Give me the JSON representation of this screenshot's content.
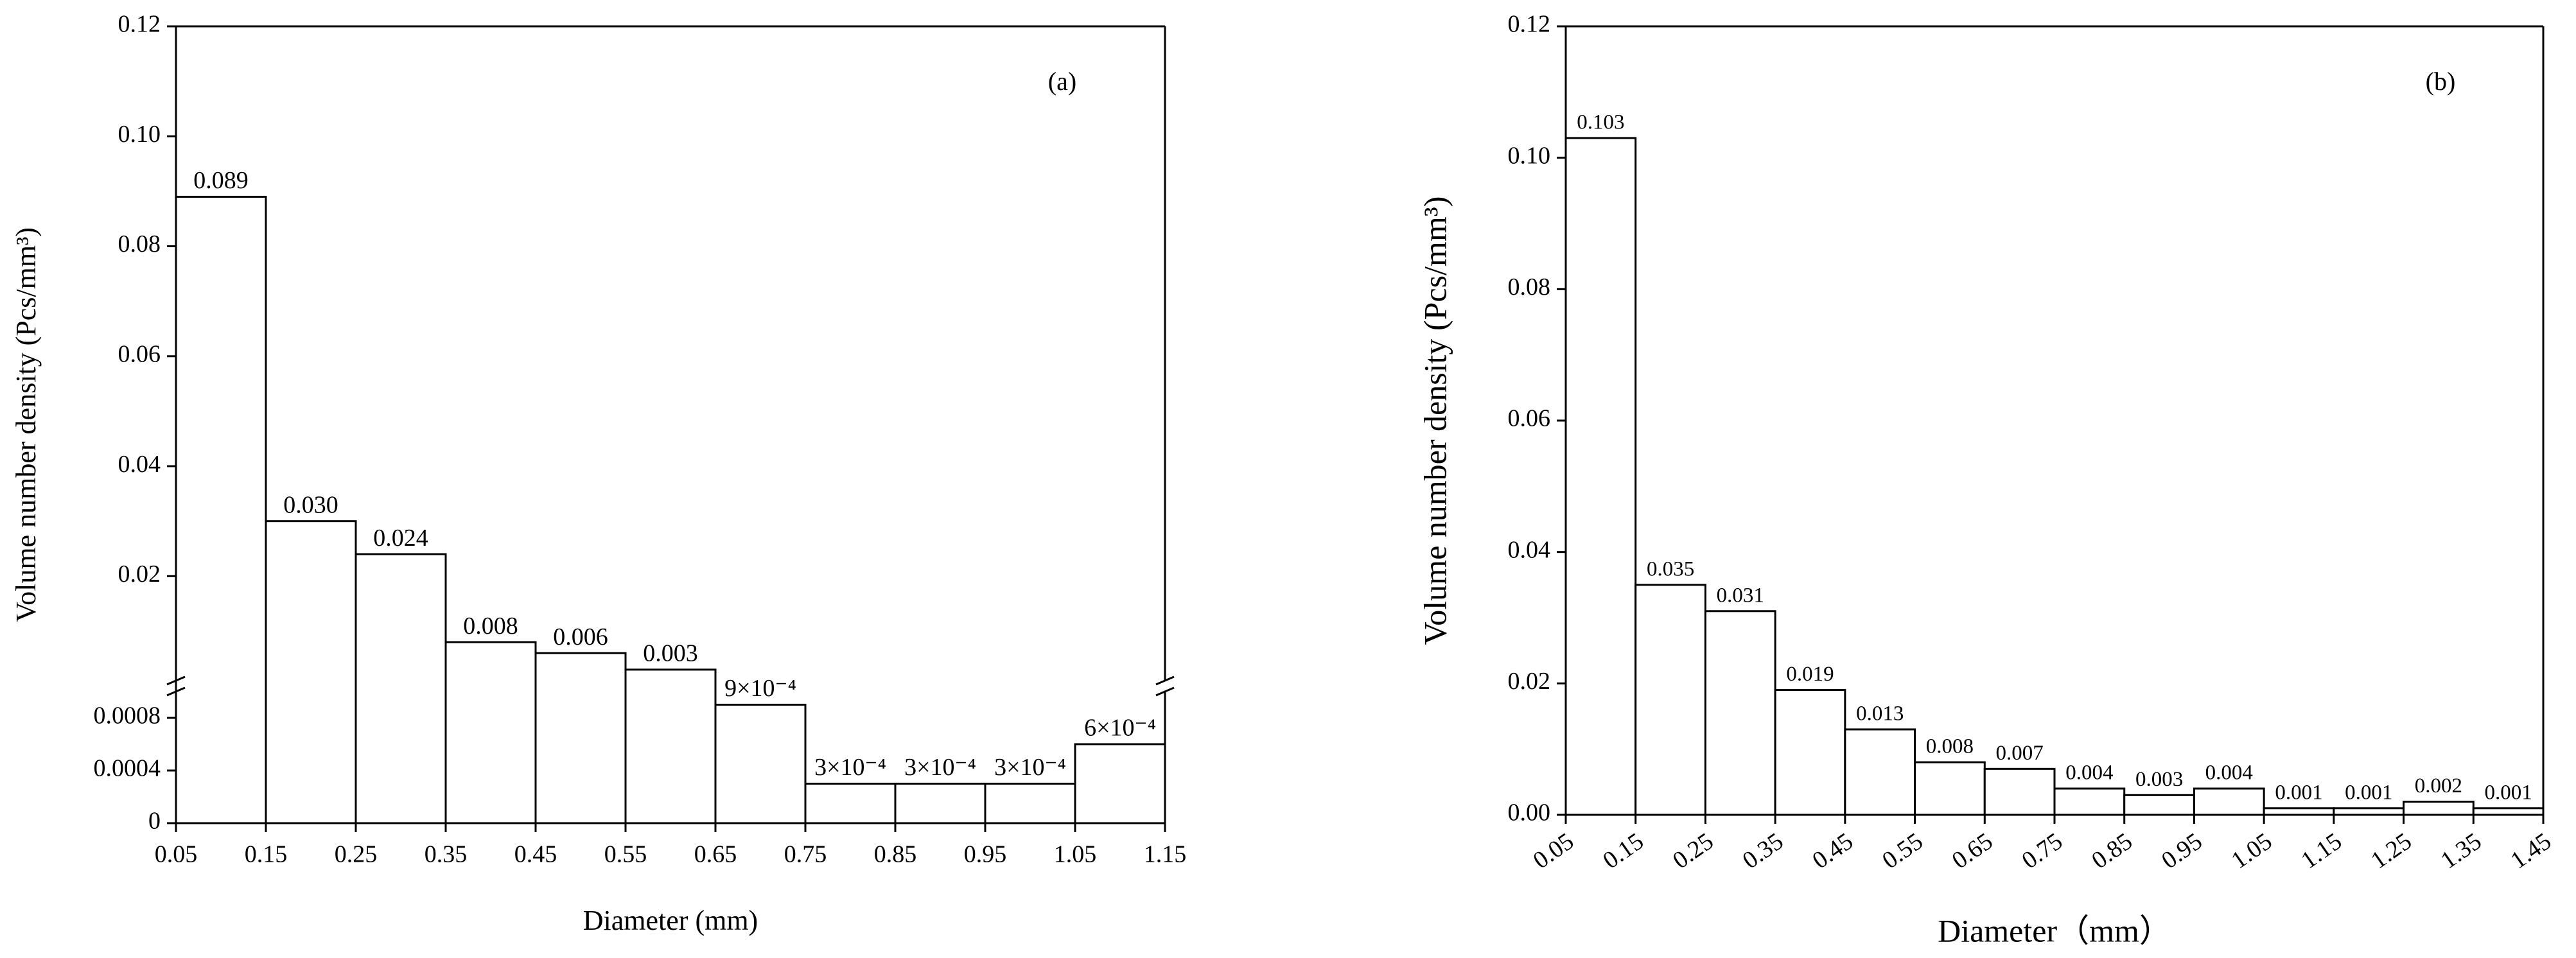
{
  "chart_data": [
    {
      "type": "histogram",
      "annotation": "(a)",
      "xlabel": "Diameter (mm)",
      "ylabel": "Volume number density (Pcs/mm³)",
      "bins": [
        0.05,
        0.15,
        0.25,
        0.35,
        0.45,
        0.55,
        0.65,
        0.75,
        0.85,
        0.95,
        1.05,
        1.15
      ],
      "values": [
        0.089,
        0.03,
        0.024,
        0.008,
        0.006,
        0.003,
        0.0009,
        0.0003,
        0.0003,
        0.0003,
        0.0006
      ],
      "value_labels": [
        "0.089",
        "0.030",
        "0.024",
        "0.008",
        "0.006",
        "0.003",
        "9×10⁻⁴",
        "3×10⁻⁴",
        "3×10⁻⁴",
        "3×10⁻⁴",
        "6×10⁻⁴"
      ],
      "xlim": [
        0.05,
        1.15
      ],
      "xticks": [
        0.05,
        0.15,
        0.25,
        0.35,
        0.45,
        0.55,
        0.65,
        0.75,
        0.85,
        0.95,
        1.05,
        1.15
      ],
      "y_segments": [
        {
          "ylim": [
            0,
            0.001
          ],
          "yticks": [
            0,
            0.0004,
            0.0008
          ]
        },
        {
          "ylim": [
            0.001,
            0.12
          ],
          "yticks": [
            0.02,
            0.04,
            0.06,
            0.08,
            {
              "value": 0.1,
              "label": "0.10"
            },
            0.12
          ]
        }
      ]
    },
    {
      "type": "histogram",
      "annotation": "(b)",
      "xlabel": "Diameter（mm）",
      "ylabel": "Volume number density (Pcs/mm³)",
      "bins": [
        0.05,
        0.15,
        0.25,
        0.35,
        0.45,
        0.55,
        0.65,
        0.75,
        0.85,
        0.95,
        1.05,
        1.15,
        1.25,
        1.35,
        1.45
      ],
      "values": [
        0.103,
        0.035,
        0.031,
        0.019,
        0.013,
        0.008,
        0.007,
        0.004,
        0.003,
        0.004,
        0.001,
        0.001,
        0.002,
        0.001
      ],
      "xlim": [
        0.05,
        1.45
      ],
      "xticks": [
        0.05,
        0.15,
        0.25,
        0.35,
        0.45,
        0.55,
        0.65,
        0.75,
        0.85,
        0.95,
        1.05,
        1.15,
        1.25,
        1.35,
        1.45
      ],
      "ylim": [
        0,
        0.12
      ],
      "yticks": [
        {
          "value": 0,
          "label": "0.00"
        },
        0.02,
        0.04,
        0.06,
        0.08,
        {
          "value": 0.1,
          "label": "0.10"
        },
        0.12
      ]
    }
  ]
}
